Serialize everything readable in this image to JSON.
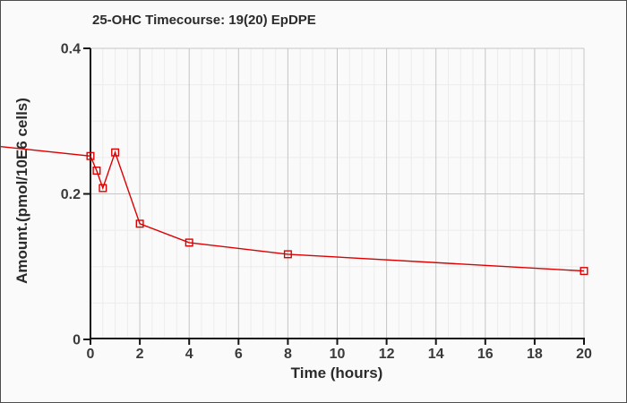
{
  "chart_data": {
    "type": "line",
    "title": "25-OHC Timecourse: 19(20) EpDPE",
    "xlabel": "Time (hours)",
    "ylabel": "Amount.(pmol/10E6 cells)",
    "xlim": [
      0,
      20
    ],
    "ylim": [
      0,
      0.4
    ],
    "x_tick_values": [
      0,
      2,
      4,
      6,
      8,
      10,
      12,
      14,
      16,
      18,
      20
    ],
    "x_tick_labels": [
      "0",
      "2",
      "4",
      "6",
      "8",
      "10",
      "12",
      "14",
      "16",
      "18",
      "20"
    ],
    "y_tick_values": [
      0,
      0.2,
      0.4
    ],
    "y_tick_labels": [
      "0",
      "0.2",
      "0.4"
    ],
    "x_minor_step": 0.5,
    "y_minor_step": 0.05,
    "grid": true,
    "legend": "none",
    "series": [
      {
        "name": "25-OHC",
        "color": "#dd0000",
        "marker": "open-square",
        "x": [
          0,
          0.25,
          0.5,
          1,
          2,
          4,
          8,
          20
        ],
        "y": [
          0.252,
          0.232,
          0.208,
          0.257,
          0.159,
          0.133,
          0.117,
          0.094
        ]
      }
    ],
    "line_enters_from_left_figure_edge_at_value": 0.265
  }
}
